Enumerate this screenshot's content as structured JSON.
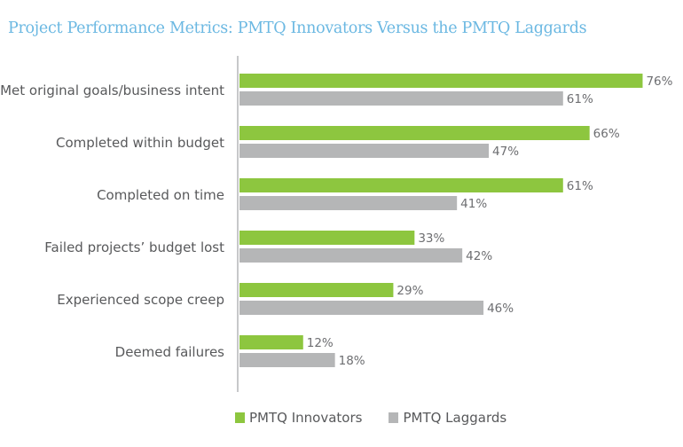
{
  "chart_data": {
    "type": "bar",
    "orientation": "horizontal",
    "title": "Project Performance Metrics: PMTQ Innovators Versus the PMTQ Laggards",
    "categories": [
      "Met original goals/business intent",
      "Completed within budget",
      "Completed on time",
      "Failed projects’ budget lost",
      "Experienced scope creep",
      "Deemed failures"
    ],
    "series": [
      {
        "name": "PMTQ Innovators",
        "color": "#8dc63f",
        "values": [
          76,
          66,
          61,
          33,
          29,
          12
        ]
      },
      {
        "name": "PMTQ Laggards",
        "color": "#b5b6b7",
        "values": [
          61,
          47,
          41,
          42,
          46,
          18
        ]
      }
    ],
    "value_suffix": "%",
    "xlabel": "",
    "ylabel": "",
    "xlim": [
      0,
      80
    ],
    "grid": false,
    "legend_position": "bottom"
  },
  "legend": {
    "items": [
      {
        "label": "PMTQ Innovators",
        "color": "#8dc63f"
      },
      {
        "label": "PMTQ Laggards",
        "color": "#b5b6b7"
      }
    ]
  }
}
